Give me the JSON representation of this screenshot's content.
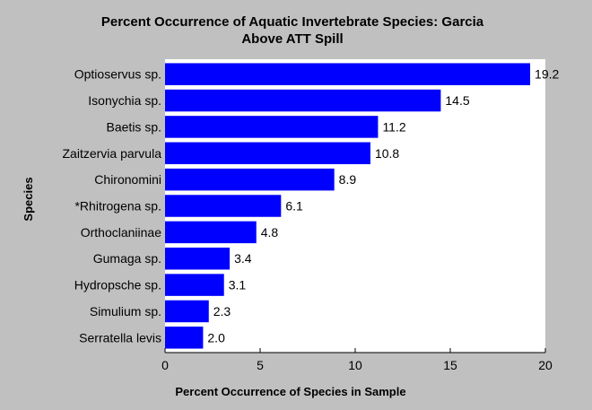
{
  "chart_data": {
    "type": "bar",
    "orientation": "horizontal",
    "title_line1": "Percent Occurrence of Aquatic Invertebrate Species: Garcia",
    "title_line2": "Above ATT Spill",
    "xlabel": "Percent Occurrence of Species in Sample",
    "ylabel": "Species",
    "xlim": [
      0,
      20
    ],
    "xticks": [
      0,
      5,
      10,
      15,
      20
    ],
    "grid": false,
    "categories": [
      "Optioservus sp.",
      "Isonychia sp.",
      "Baetis sp.",
      "Zaitzervia parvula",
      "Chironomini",
      "*Rhitrogena sp.",
      "Orthoclaniinae",
      "Gumaga sp.",
      "Hydropsche sp.",
      "Simulium sp.",
      "Serratella levis"
    ],
    "values": [
      19.2,
      14.5,
      11.2,
      10.8,
      8.9,
      6.1,
      4.8,
      3.4,
      3.1,
      2.3,
      2.0
    ],
    "value_labels": [
      "19.2",
      "14.5",
      "11.2",
      "10.8",
      "8.9",
      "6.1",
      "4.8",
      "3.4",
      "3.1",
      "2.3",
      "2.0"
    ],
    "colors": {
      "background": "#c0c0c0",
      "plot_background": "#ffffff",
      "bar": "#0000ff",
      "axis": "#000000"
    }
  }
}
